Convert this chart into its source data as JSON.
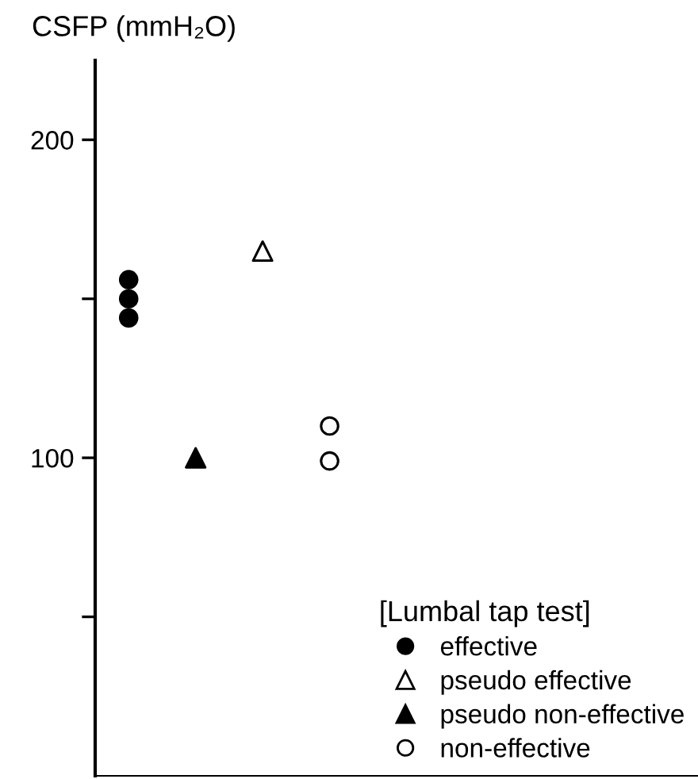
{
  "chart_data": {
    "type": "scatter",
    "ylabel": "CSFP (mmH₂O)",
    "legend_title": "[Lumbal tap test]",
    "categories": [
      null,
      null,
      null,
      null,
      null,
      null,
      null,
      null,
      null
    ],
    "series": [
      {
        "name": "effective",
        "color": "#000000",
        "marker": "circle",
        "values": [
          156,
          null,
          null,
          null,
          null,
          null,
          null,
          null,
          null
        ]
      },
      {
        "color": "#000000",
        "marker": "circle",
        "values": [
          150,
          null,
          null,
          null,
          null,
          null,
          null,
          null,
          null
        ]
      },
      {
        "color": "#000000",
        "marker": "circle",
        "values": [
          144,
          null,
          null,
          null,
          null,
          null,
          null,
          null,
          null
        ]
      },
      {
        "name": "pseudo effective",
        "color": "#ffffff",
        "marker": "triangle",
        "values": [
          null,
          null,
          165,
          null,
          null,
          null,
          null,
          null,
          null
        ]
      },
      {
        "name": "pseudo non-effective",
        "color": "#000000",
        "marker": "triangle",
        "values": [
          null,
          100,
          null,
          null,
          null,
          null,
          null,
          null,
          null
        ]
      },
      {
        "name": "non-effective",
        "color": "#ffffff",
        "marker": "circle",
        "values": [
          null,
          null,
          null,
          110,
          null,
          null,
          null,
          null,
          null
        ]
      },
      {
        "color": "#ffffff",
        "marker": "circle",
        "values": [
          null,
          null,
          null,
          99,
          null,
          null,
          null,
          null,
          null
        ]
      }
    ],
    "ylim": [
      0,
      225
    ],
    "yticks": [
      {
        "value": 50,
        "label": null
      },
      100,
      {
        "value": 150,
        "label": null
      },
      200
    ],
    "grid": false,
    "legend": "bottom right"
  }
}
